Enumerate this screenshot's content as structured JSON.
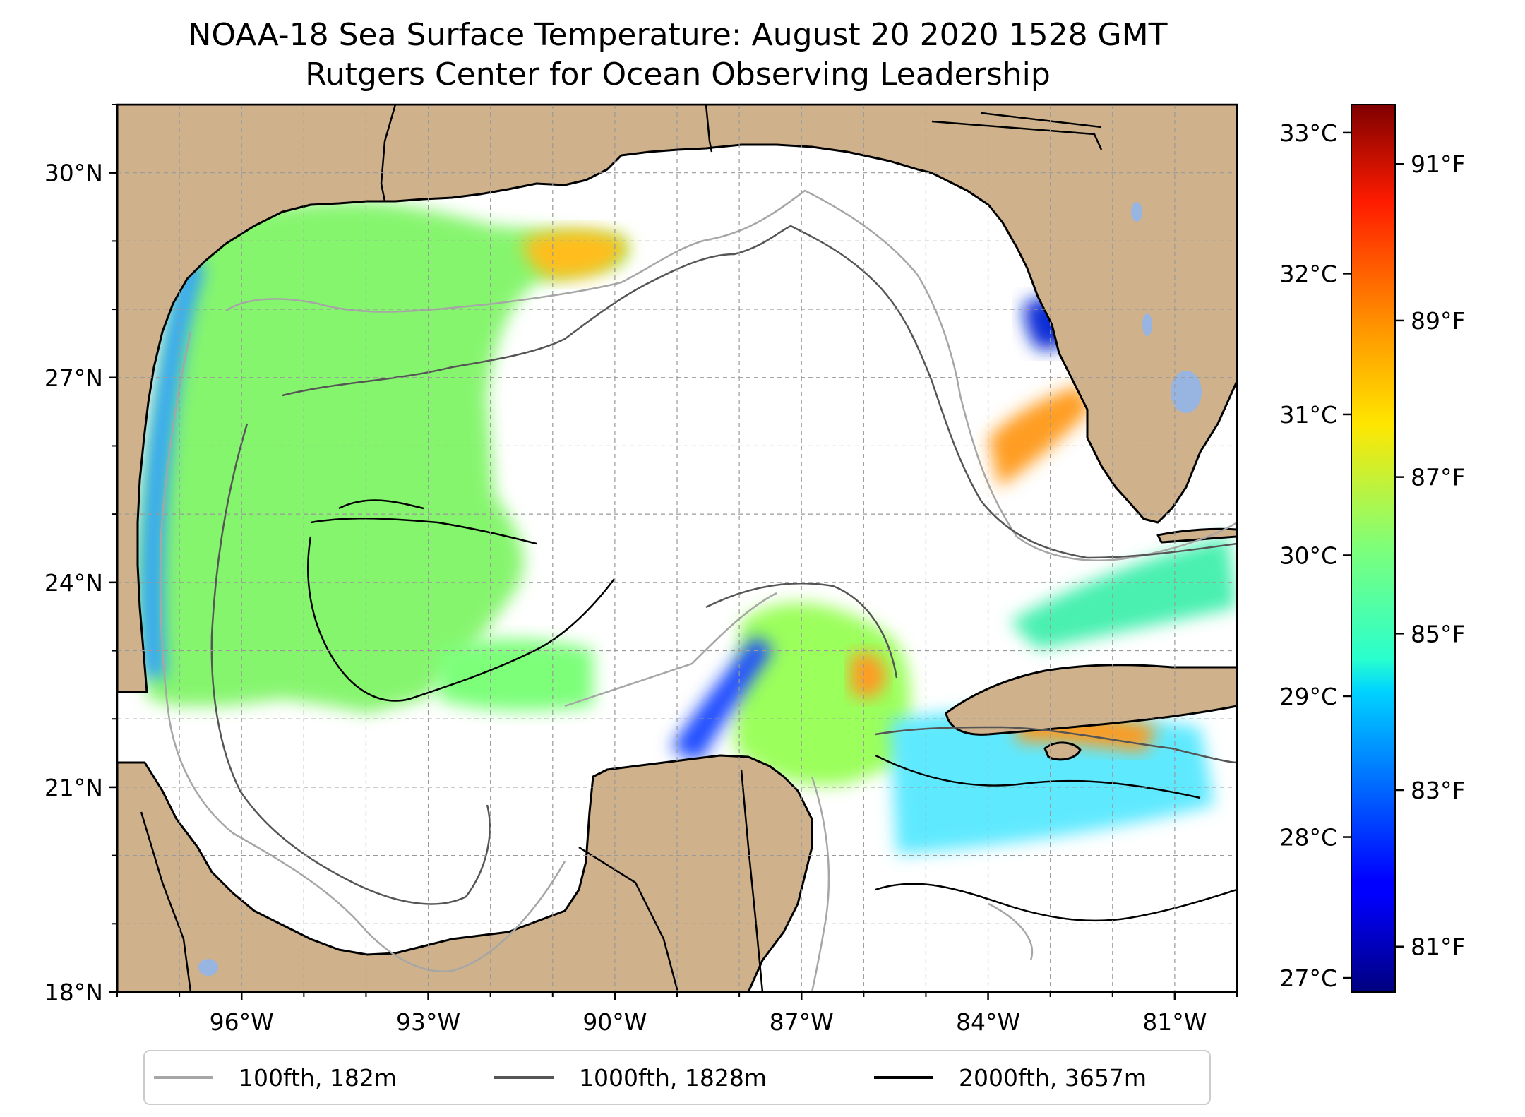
{
  "title": {
    "line1": "NOAA-18 Sea Surface Temperature: August 20 2020 1528 GMT",
    "line2": "Rutgers Center for Ocean Observing Leadership"
  },
  "map": {
    "lon_range": [
      -98,
      -80
    ],
    "lat_range": [
      18,
      31
    ],
    "lon_ticks": [
      {
        "value": -96,
        "label": "96°W"
      },
      {
        "value": -93,
        "label": "93°W"
      },
      {
        "value": -90,
        "label": "90°W"
      },
      {
        "value": -87,
        "label": "87°W"
      },
      {
        "value": -84,
        "label": "84°W"
      },
      {
        "value": -81,
        "label": "81°W"
      }
    ],
    "lat_ticks": [
      {
        "value": 18,
        "label": "18°N"
      },
      {
        "value": 21,
        "label": "21°N"
      },
      {
        "value": 24,
        "label": "24°N"
      },
      {
        "value": 27,
        "label": "27°N"
      },
      {
        "value": 30,
        "label": "30°N"
      }
    ],
    "grid": true,
    "land_color": "#cfb28c",
    "lake_color": "#98b4e0"
  },
  "colorbar": {
    "colormap": "jet",
    "celsius_range": [
      26.9,
      33.2
    ],
    "celsius_ticks": [
      {
        "value": 27,
        "label": "27°C"
      },
      {
        "value": 28,
        "label": "28°C"
      },
      {
        "value": 29,
        "label": "29°C"
      },
      {
        "value": 30,
        "label": "30°C"
      },
      {
        "value": 31,
        "label": "31°C"
      },
      {
        "value": 32,
        "label": "32°C"
      },
      {
        "value": 33,
        "label": "33°C"
      }
    ],
    "fahrenheit_ticks": [
      {
        "value": 81,
        "label": "81°F"
      },
      {
        "value": 83,
        "label": "83°F"
      },
      {
        "value": 85,
        "label": "85°F"
      },
      {
        "value": 87,
        "label": "87°F"
      },
      {
        "value": 89,
        "label": "89°F"
      },
      {
        "value": 91,
        "label": "91°F"
      }
    ]
  },
  "legend": {
    "placement": "bottom",
    "items": [
      {
        "label": "100fth, 182m",
        "color": "#a6a6a6"
      },
      {
        "label": "1000fth, 1828m",
        "color": "#555555"
      },
      {
        "label": "2000fth, 3657m",
        "color": "#000000"
      }
    ]
  }
}
